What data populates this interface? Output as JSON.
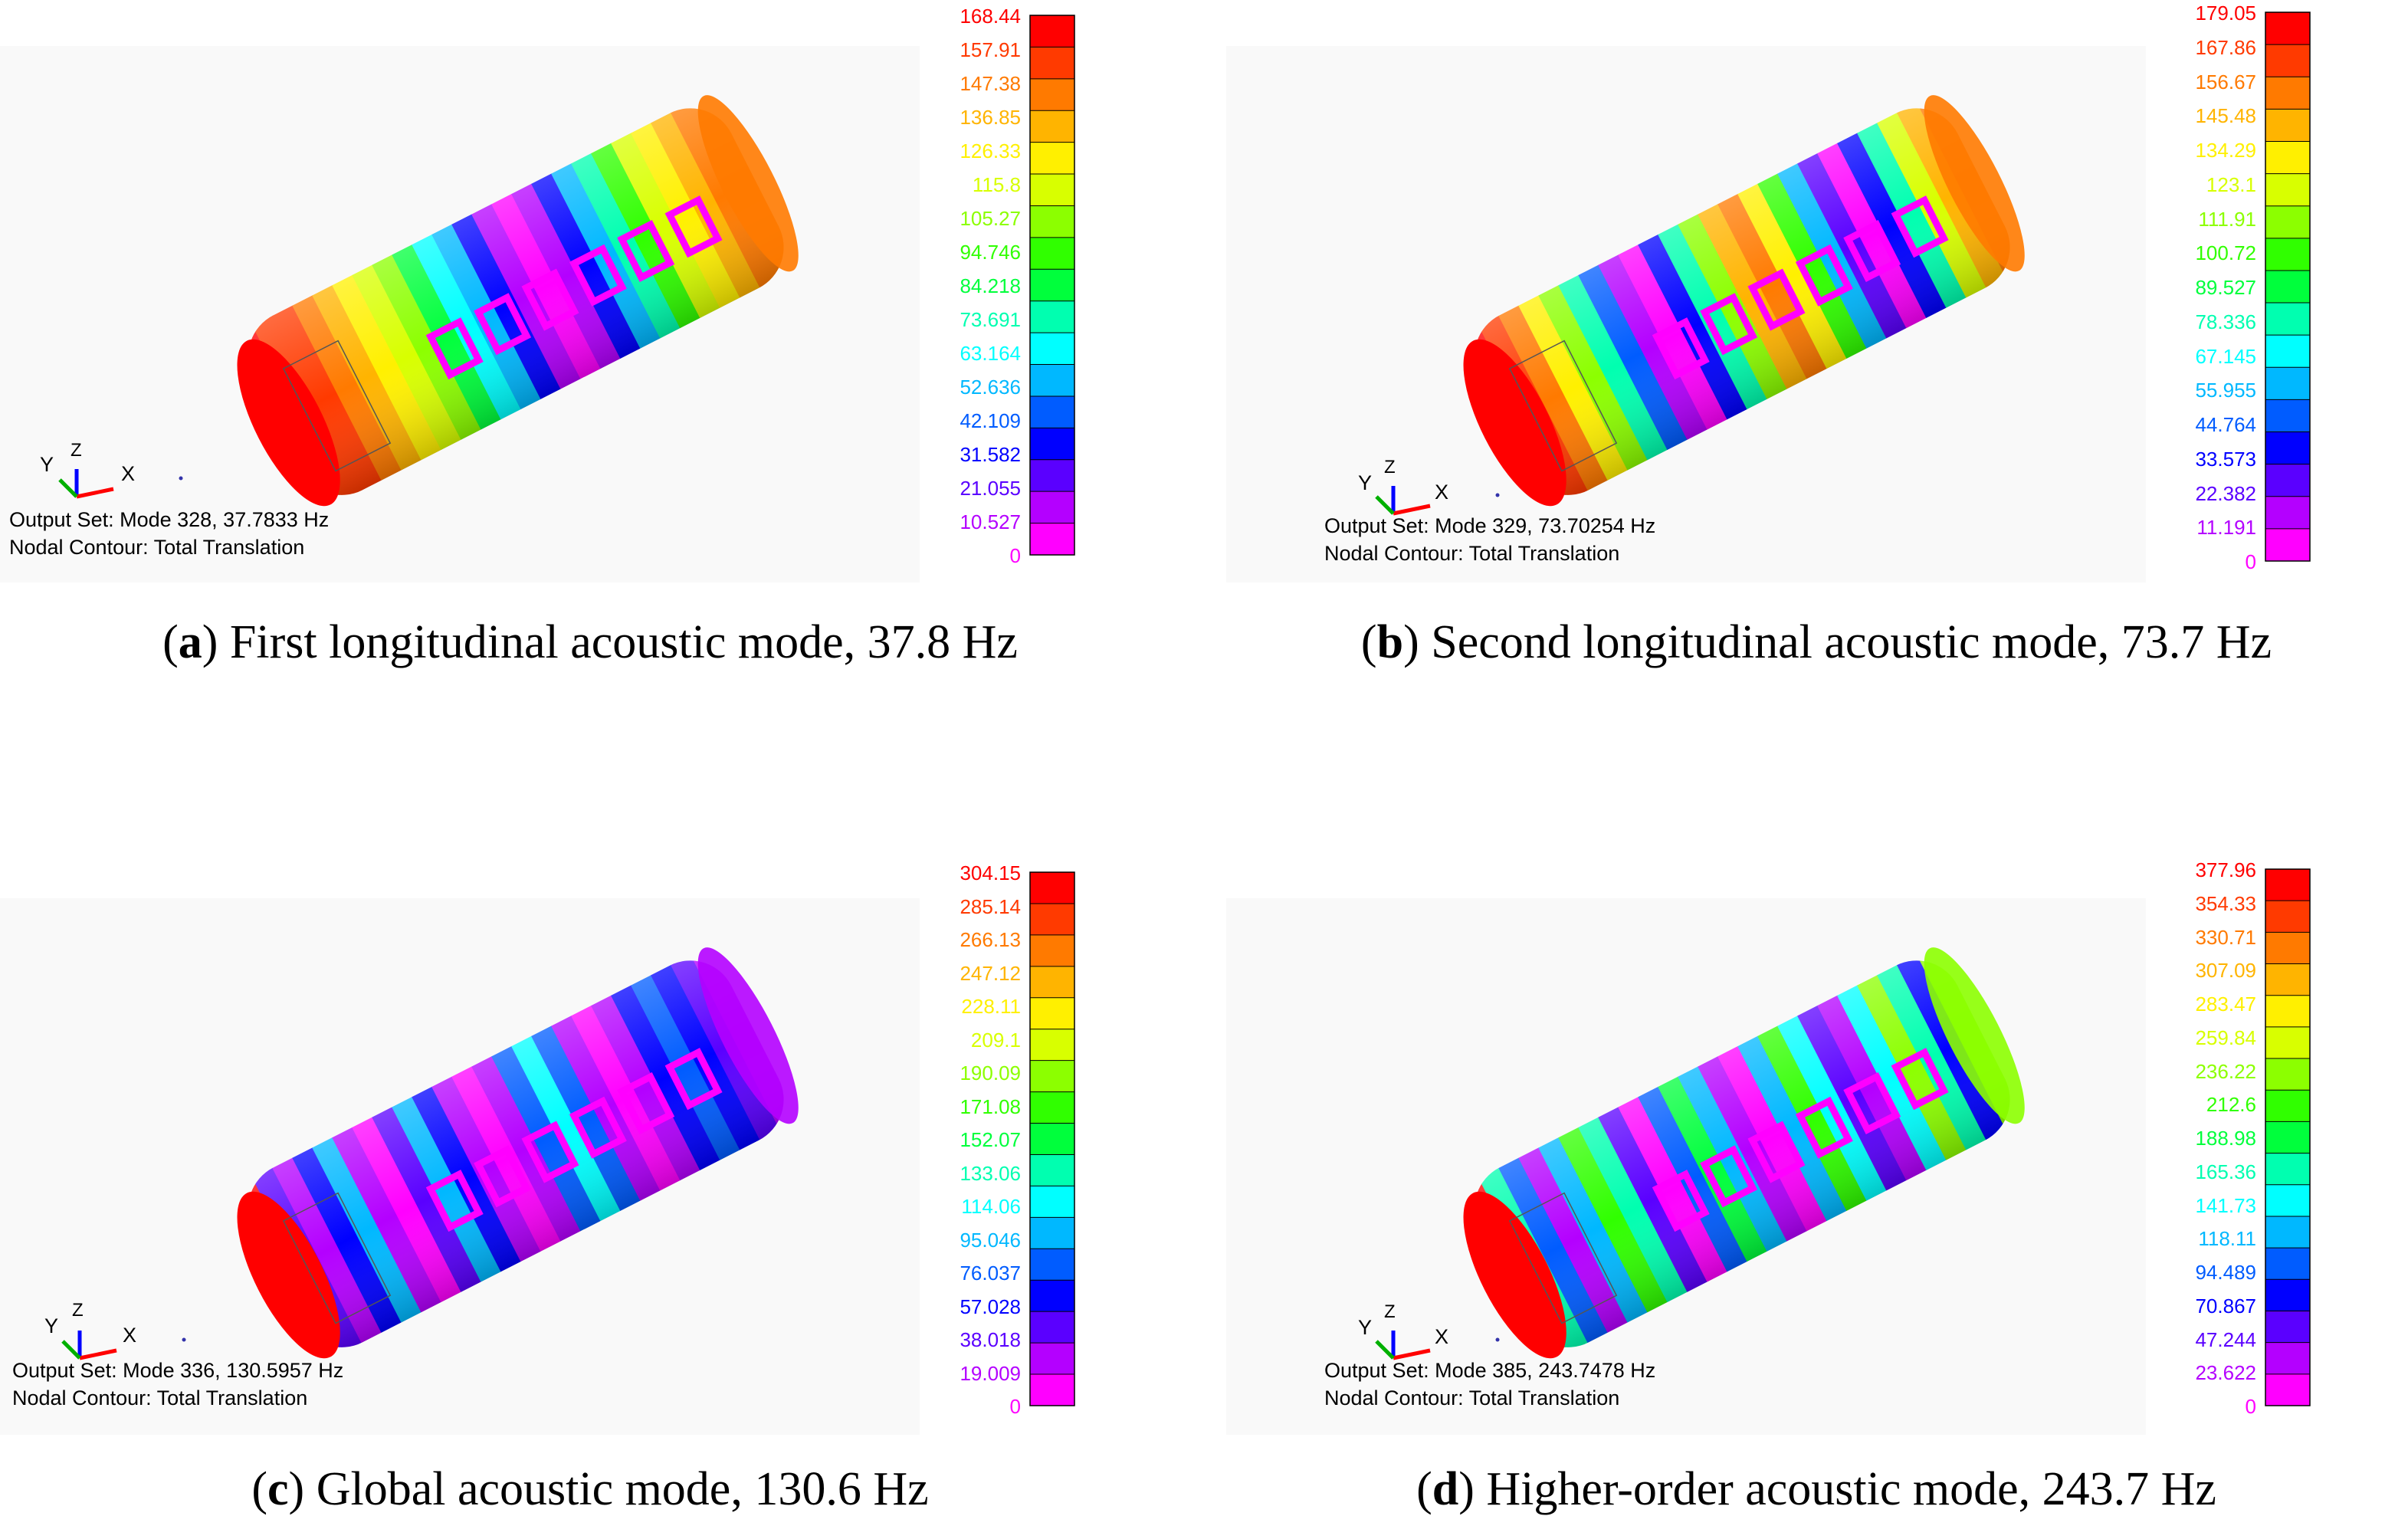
{
  "panels": [
    {
      "letter": "a",
      "caption": "First longitudinal acoustic mode, 37.8 Hz",
      "output_set": "Output Set: Mode 328, 37.7833 Hz",
      "contour": "Nodal Contour: Total Translation",
      "legend": [
        "168.44",
        "157.91",
        "147.38",
        "136.85",
        "126.33",
        "115.8",
        "105.27",
        "94.746",
        "84.218",
        "73.691",
        "63.164",
        "52.636",
        "42.109",
        "31.582",
        "21.055",
        "10.527",
        "0"
      ]
    },
    {
      "letter": "b",
      "caption": "Second longitudinal acoustic mode, 73.7 Hz",
      "output_set": "Output Set: Mode 329, 73.70254 Hz",
      "contour": "Nodal Contour: Total Translation",
      "legend": [
        "179.05",
        "167.86",
        "156.67",
        "145.48",
        "134.29",
        "123.1",
        "111.91",
        "100.72",
        "89.527",
        "78.336",
        "67.145",
        "55.955",
        "44.764",
        "33.573",
        "22.382",
        "11.191",
        "0"
      ]
    },
    {
      "letter": "c",
      "caption": "Global acoustic mode, 130.6 Hz",
      "output_set": "Output Set: Mode 336, 130.5957 Hz",
      "contour": "Nodal Contour: Total Translation",
      "legend": [
        "304.15",
        "285.14",
        "266.13",
        "247.12",
        "228.11",
        "209.1",
        "190.09",
        "171.08",
        "152.07",
        "133.06",
        "114.06",
        "95.046",
        "76.037",
        "57.028",
        "38.018",
        "19.009",
        "0"
      ]
    },
    {
      "letter": "d",
      "caption": "Higher-order acoustic mode, 243.7 Hz",
      "output_set": "Output Set: Mode 385, 243.7478 Hz",
      "contour": "Nodal Contour: Total Translation",
      "legend": [
        "377.96",
        "354.33",
        "330.71",
        "307.09",
        "283.47",
        "259.84",
        "236.22",
        "212.6",
        "188.98",
        "165.36",
        "141.73",
        "118.11",
        "94.489",
        "70.867",
        "47.244",
        "23.622",
        "0"
      ]
    }
  ],
  "axis_labels": {
    "y": "Y",
    "z": "Z",
    "x": "X"
  },
  "colors": {
    "scale": [
      "#ff0000",
      "#ff3a00",
      "#ff7a00",
      "#ffb400",
      "#fff000",
      "#d8ff00",
      "#8cff00",
      "#30ff00",
      "#00ff3c",
      "#00ffb0",
      "#00ffff",
      "#00b8ff",
      "#005cff",
      "#0000ff",
      "#5a00ff",
      "#b400ff",
      "#ff00ff"
    ],
    "window_frame": "#ff00ff"
  }
}
